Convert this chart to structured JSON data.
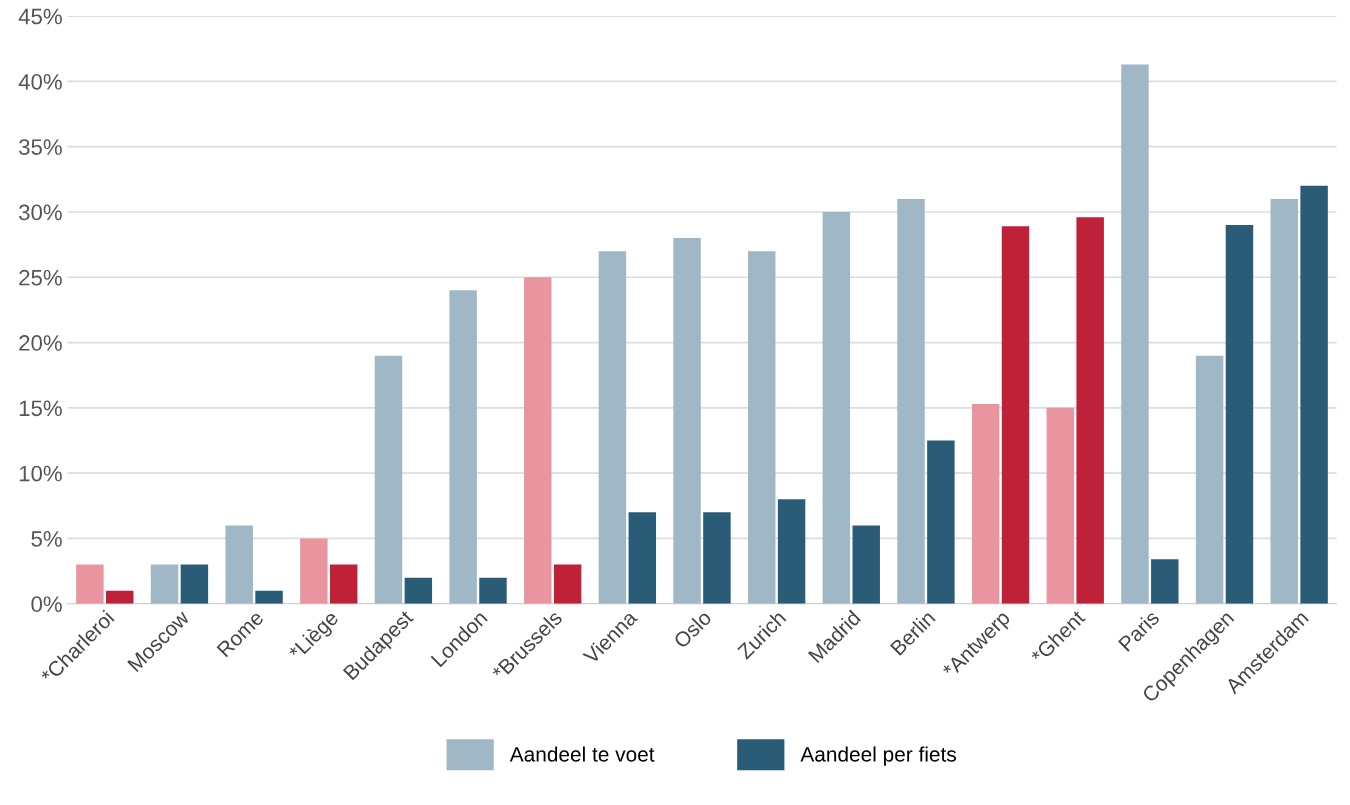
{
  "chart_data": {
    "type": "bar",
    "categories": [
      "*Charleroi",
      "Moscow",
      "Rome",
      "*Liège",
      "Budapest",
      "London",
      "*Brussels",
      "Vienna",
      "Oslo",
      "Zurich",
      "Madrid",
      "Berlin",
      "*Antwerp",
      "*Ghent",
      "Paris",
      "Copenhagen",
      "Amsterdam"
    ],
    "series": [
      {
        "name": "Aandeel te voet",
        "color": "#a0b7c5",
        "colors": [
          "#e9959f",
          "#a0b7c5",
          "#a0b7c5",
          "#e9959f",
          "#a0b7c5",
          "#a0b7c5",
          "#e9959f",
          "#a0b7c5",
          "#a0b7c5",
          "#a0b7c5",
          "#a0b7c5",
          "#a0b7c5",
          "#e9959f",
          "#e9959f",
          "#a0b7c5",
          "#a0b7c5",
          "#a0b7c5"
        ],
        "values": [
          3,
          3,
          6,
          5,
          19,
          24,
          25,
          27,
          28,
          27,
          30,
          31,
          15.3,
          15,
          41.3,
          19,
          31
        ]
      },
      {
        "name": "Aandeel per fiets",
        "color": "#2b5c77",
        "colors": [
          "#bf2139",
          "#2b5c77",
          "#2b5c77",
          "#bf2139",
          "#2b5c77",
          "#2b5c77",
          "#bf2139",
          "#2b5c77",
          "#2b5c77",
          "#2b5c77",
          "#2b5c77",
          "#2b5c77",
          "#bf2139",
          "#bf2139",
          "#2b5c77",
          "#2b5c77",
          "#2b5c77"
        ],
        "values": [
          1,
          3,
          1,
          3,
          2,
          2,
          3,
          7,
          7,
          8,
          6,
          12.5,
          28.9,
          29.6,
          3.4,
          29,
          32
        ]
      }
    ],
    "ylim": [
      0,
      45
    ],
    "yticks": [
      {
        "value": 0,
        "label": "0%"
      },
      {
        "value": 5,
        "label": "5%"
      },
      {
        "value": 10,
        "label": "10%"
      },
      {
        "value": 15,
        "label": "15%"
      },
      {
        "value": 20,
        "label": "20%"
      },
      {
        "value": 25,
        "label": "25%"
      },
      {
        "value": 30,
        "label": "30%"
      },
      {
        "value": 35,
        "label": "35%"
      },
      {
        "value": 40,
        "label": "40%"
      },
      {
        "value": 45,
        "label": "45%"
      }
    ],
    "grid": "y",
    "legend": "bottom"
  }
}
